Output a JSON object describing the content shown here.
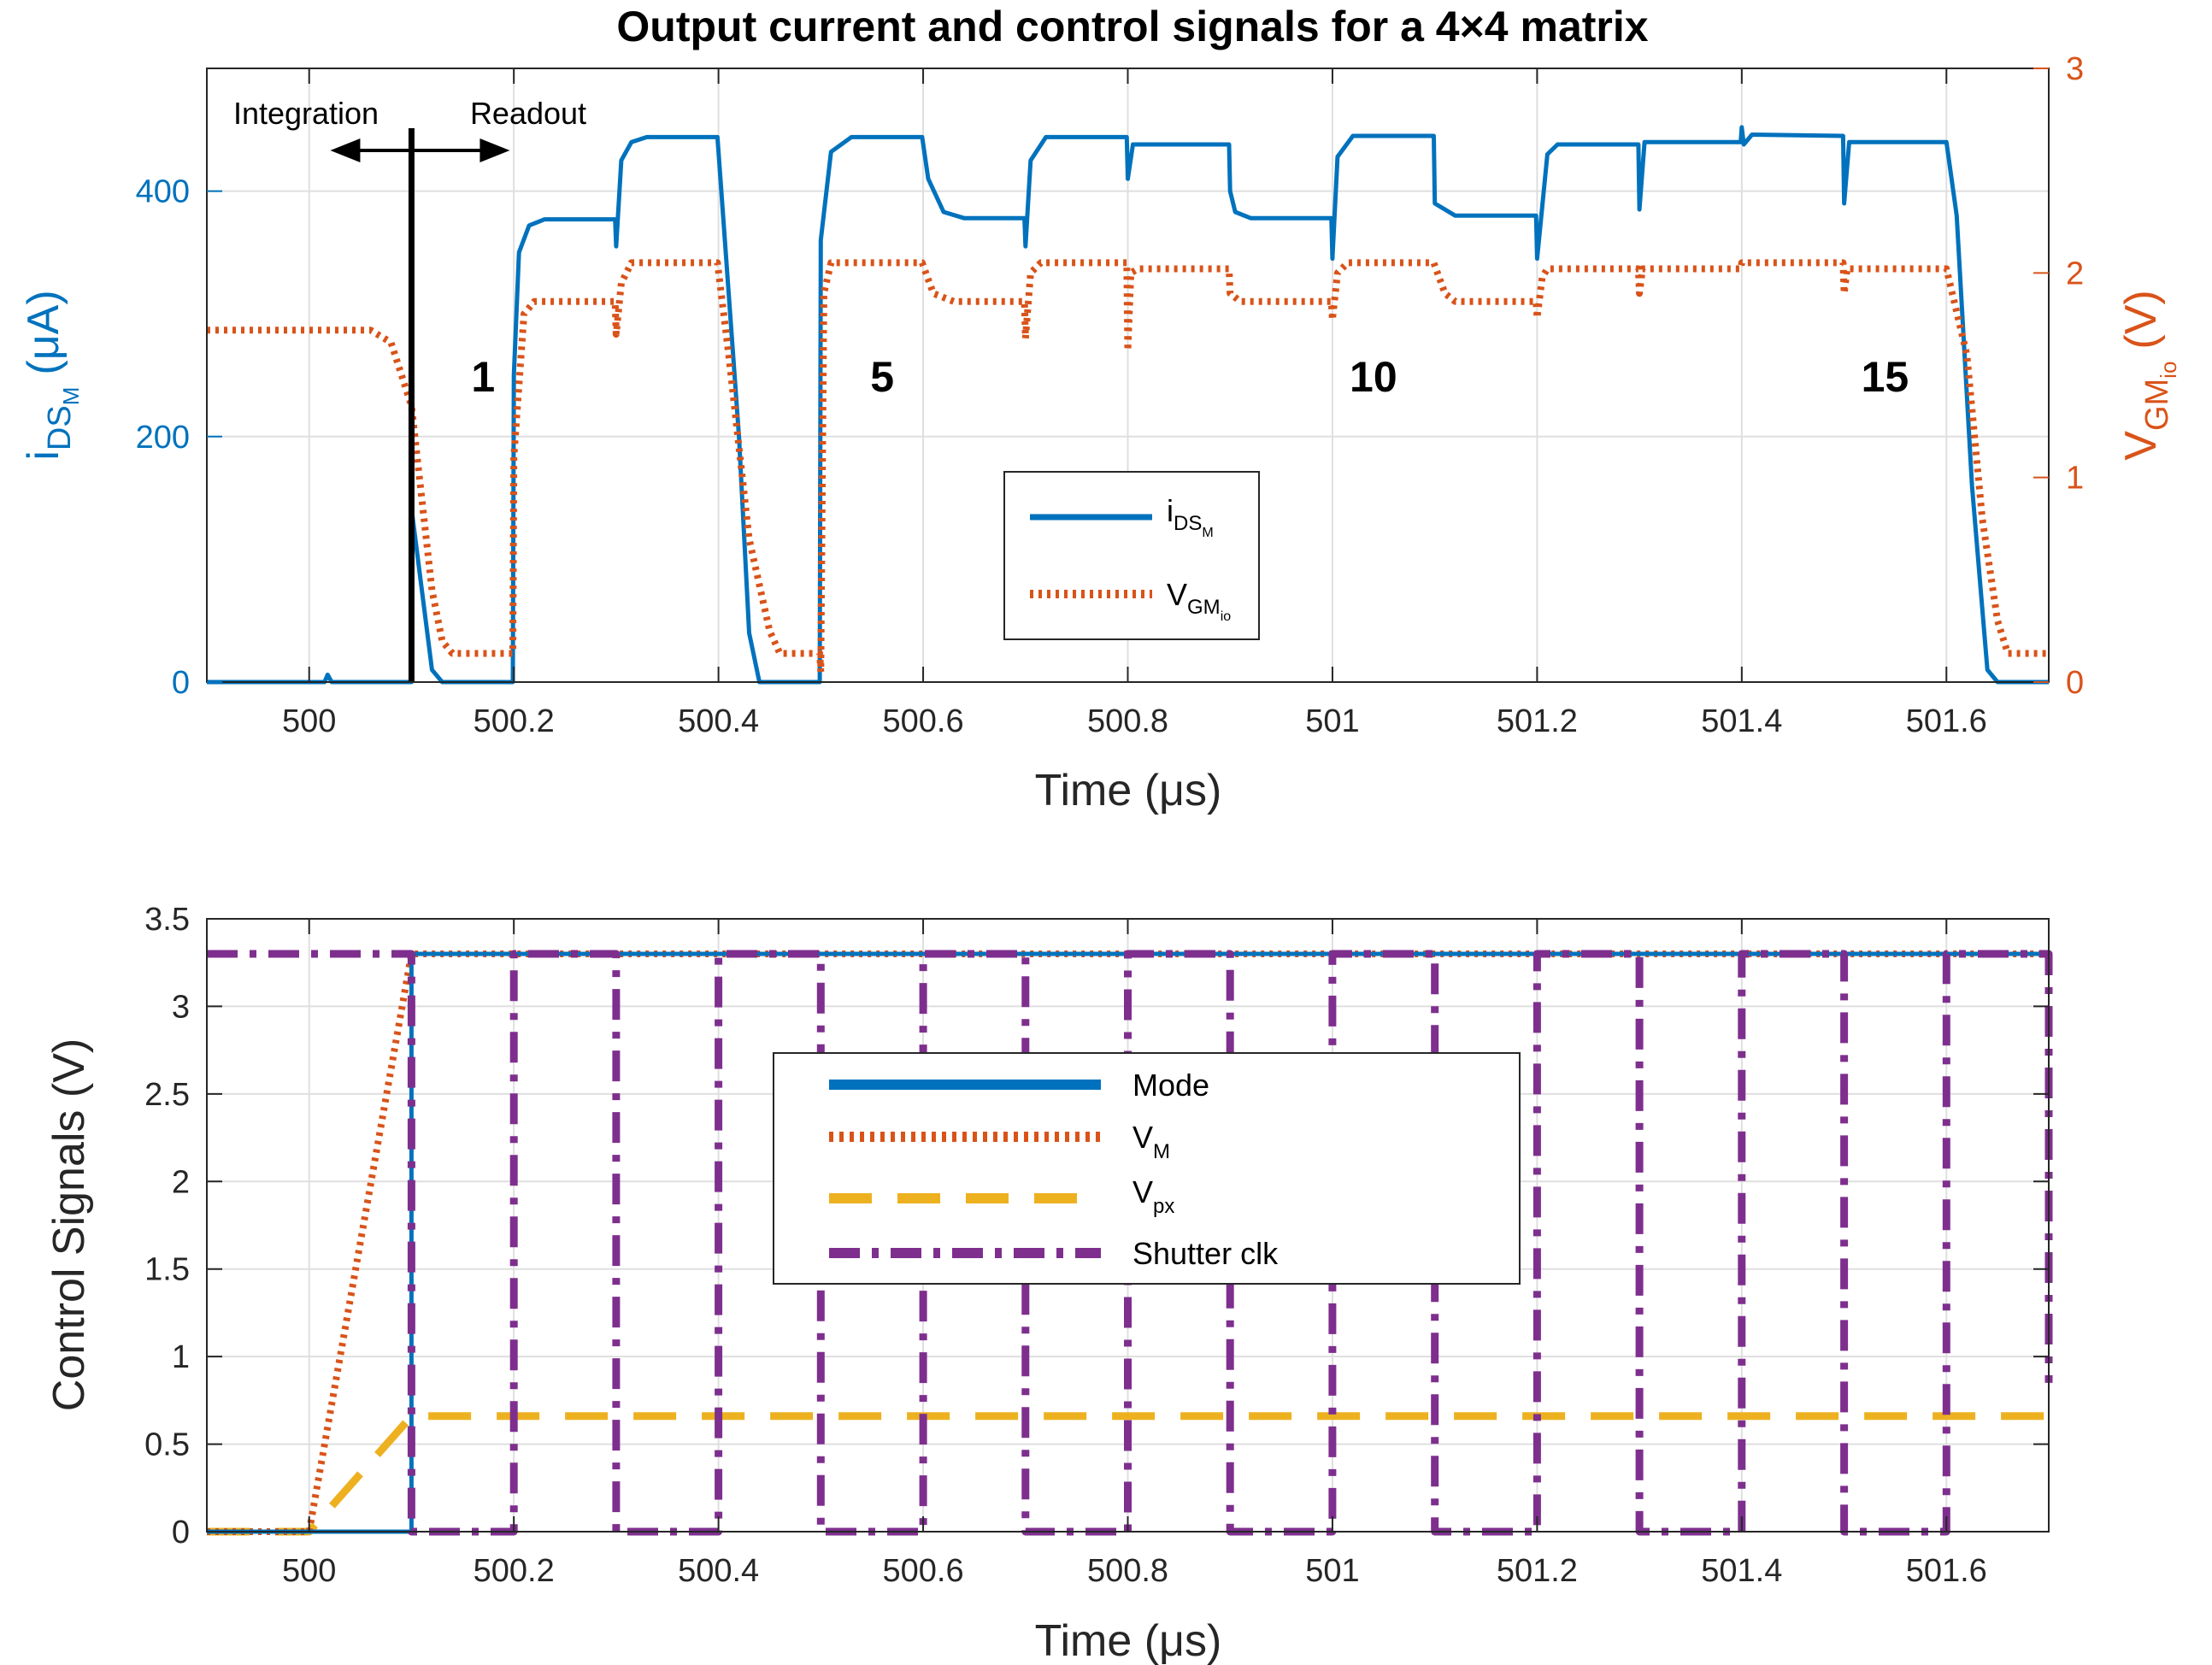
{
  "chart_data": [
    {
      "type": "line",
      "title": "Output current and control signals for a 4×4 matrix",
      "xlabel": "Time (μs)",
      "ylabel_left": "i_DS_M (μA)",
      "ylabel_right": "V_GM_io (V)",
      "xlim": [
        499.9,
        501.7
      ],
      "ylim_left": [
        0,
        500
      ],
      "ylim_right": [
        0,
        3
      ],
      "xticks": [
        "500",
        "500.2",
        "500.4",
        "500.6",
        "500.8",
        "501",
        "501.2",
        "501.4",
        "501.6"
      ],
      "yticks_left": [
        "0",
        "200",
        "400"
      ],
      "yticks_right": [
        "0",
        "1",
        "2",
        "3"
      ],
      "grid": true,
      "legend_position": "center",
      "annotations": {
        "integration": "Integration",
        "readout": "Readout",
        "divider_x": 500.1,
        "numbers": [
          {
            "label": "1",
            "x": 500.17
          },
          {
            "label": "5",
            "x": 500.56
          },
          {
            "label": "10",
            "x": 501.04
          },
          {
            "label": "15",
            "x": 501.54
          }
        ]
      },
      "series": [
        {
          "name": "iDS_M",
          "legend_main": "i",
          "legend_sub": "DS",
          "legend_subsub": "M",
          "color": "#0072BD",
          "style": "solid",
          "axis": "left",
          "points": [
            [
              499.9,
              0
            ],
            [
              500.0,
              0
            ],
            [
              500.015,
              0
            ],
            [
              500.018,
              6
            ],
            [
              500.022,
              0
            ],
            [
              500.1,
              0
            ],
            [
              500.101,
              135
            ],
            [
              500.12,
              10
            ],
            [
              500.13,
              0
            ],
            [
              500.199,
              0
            ],
            [
              500.2,
              250
            ],
            [
              500.205,
              350
            ],
            [
              500.215,
              372
            ],
            [
              500.23,
              377
            ],
            [
              500.299,
              377
            ],
            [
              500.3,
              355
            ],
            [
              500.305,
              425
            ],
            [
              500.315,
              440
            ],
            [
              500.33,
              444
            ],
            [
              500.399,
              444
            ],
            [
              500.42,
              200
            ],
            [
              500.43,
              40
            ],
            [
              500.44,
              0
            ],
            [
              500.499,
              0
            ],
            [
              500.5,
              360
            ],
            [
              500.51,
              432
            ],
            [
              500.53,
              444
            ],
            [
              500.599,
              444
            ],
            [
              500.605,
              410
            ],
            [
              500.62,
              383
            ],
            [
              500.64,
              378
            ],
            [
              500.699,
              378
            ],
            [
              500.7,
              355
            ],
            [
              500.705,
              425
            ],
            [
              500.72,
              444
            ],
            [
              500.799,
              444
            ],
            [
              500.8,
              410
            ],
            [
              500.805,
              438
            ],
            [
              500.899,
              438
            ],
            [
              500.9,
              400
            ],
            [
              500.905,
              383
            ],
            [
              500.92,
              378
            ],
            [
              500.999,
              378
            ],
            [
              501.0,
              345
            ],
            [
              501.005,
              428
            ],
            [
              501.02,
              445
            ],
            [
              501.099,
              445
            ],
            [
              501.1,
              390
            ],
            [
              501.12,
              380
            ],
            [
              501.199,
              380
            ],
            [
              501.2,
              345
            ],
            [
              501.21,
              430
            ],
            [
              501.22,
              438
            ],
            [
              501.299,
              438
            ],
            [
              501.3,
              385
            ],
            [
              501.305,
              440
            ],
            [
              501.399,
              440
            ],
            [
              501.4,
              452
            ],
            [
              501.402,
              438
            ],
            [
              501.41,
              446
            ],
            [
              501.499,
              445
            ],
            [
              501.5,
              390
            ],
            [
              501.505,
              440
            ],
            [
              501.6,
              440
            ],
            [
              501.61,
              380
            ],
            [
              501.625,
              160
            ],
            [
              501.64,
              10
            ],
            [
              501.65,
              0
            ],
            [
              501.7,
              0
            ]
          ]
        },
        {
          "name": "VGM_io",
          "legend_main": "V",
          "legend_sub": "GM",
          "legend_subsub": "io",
          "color": "#D95319",
          "style": "dotted",
          "axis": "right",
          "points": [
            [
              499.9,
              1.72
            ],
            [
              500.06,
              1.72
            ],
            [
              500.08,
              1.66
            ],
            [
              500.1,
              1.35
            ],
            [
              500.11,
              0.9
            ],
            [
              500.12,
              0.45
            ],
            [
              500.13,
              0.2
            ],
            [
              500.14,
              0.14
            ],
            [
              500.199,
              0.14
            ],
            [
              500.2,
              1.1
            ],
            [
              500.21,
              1.8
            ],
            [
              500.22,
              1.86
            ],
            [
              500.299,
              1.86
            ],
            [
              500.3,
              1.7
            ],
            [
              500.305,
              1.95
            ],
            [
              500.315,
              2.05
            ],
            [
              500.399,
              2.05
            ],
            [
              500.41,
              1.6
            ],
            [
              500.43,
              0.7
            ],
            [
              500.45,
              0.25
            ],
            [
              500.46,
              0.14
            ],
            [
              500.499,
              0.14
            ],
            [
              500.5,
              0.05
            ],
            [
              500.503,
              1.9
            ],
            [
              500.51,
              2.05
            ],
            [
              500.599,
              2.05
            ],
            [
              500.61,
              1.9
            ],
            [
              500.63,
              1.86
            ],
            [
              500.699,
              1.86
            ],
            [
              500.7,
              1.68
            ],
            [
              500.705,
              2.0
            ],
            [
              500.715,
              2.05
            ],
            [
              500.799,
              2.05
            ],
            [
              500.8,
              1.62
            ],
            [
              500.803,
              2.0
            ],
            [
              500.81,
              2.02
            ],
            [
              500.899,
              2.02
            ],
            [
              500.9,
              1.9
            ],
            [
              500.91,
              1.86
            ],
            [
              500.999,
              1.86
            ],
            [
              501.0,
              1.77
            ],
            [
              501.005,
              2.0
            ],
            [
              501.015,
              2.05
            ],
            [
              501.099,
              2.05
            ],
            [
              501.11,
              1.9
            ],
            [
              501.12,
              1.86
            ],
            [
              501.199,
              1.86
            ],
            [
              501.2,
              1.78
            ],
            [
              501.205,
              1.98
            ],
            [
              501.21,
              2.02
            ],
            [
              501.299,
              2.02
            ],
            [
              501.3,
              1.9
            ],
            [
              501.303,
              2.02
            ],
            [
              501.399,
              2.02
            ],
            [
              501.4,
              2.05
            ],
            [
              501.499,
              2.05
            ],
            [
              501.5,
              1.9
            ],
            [
              501.503,
              2.02
            ],
            [
              501.6,
              2.02
            ],
            [
              501.62,
              1.6
            ],
            [
              501.635,
              0.8
            ],
            [
              501.65,
              0.3
            ],
            [
              501.66,
              0.14
            ],
            [
              501.7,
              0.14
            ]
          ]
        }
      ]
    },
    {
      "type": "line",
      "title": "",
      "xlabel": "Time (μs)",
      "ylabel": "Control Signals (V)",
      "xlim": [
        499.9,
        501.7
      ],
      "ylim": [
        0,
        3.5
      ],
      "xticks": [
        "500",
        "500.2",
        "500.4",
        "500.6",
        "500.8",
        "501",
        "501.2",
        "501.4",
        "501.6"
      ],
      "yticks": [
        "0",
        "0.5",
        "1",
        "1.5",
        "2",
        "2.5",
        "3",
        "3.5"
      ],
      "grid": true,
      "legend_position": "center",
      "series": [
        {
          "name": "Mode",
          "legend_main": "Mode",
          "legend_sub": "",
          "color": "#0072BD",
          "style": "solid",
          "points": [
            [
              499.9,
              0
            ],
            [
              500.1,
              0
            ],
            [
              500.1,
              3.3
            ],
            [
              501.7,
              3.3
            ]
          ]
        },
        {
          "name": "VM",
          "legend_main": "V",
          "legend_sub": "M",
          "color": "#D95319",
          "style": "dotted",
          "points": [
            [
              499.9,
              0
            ],
            [
              500.0,
              0
            ],
            [
              500.1,
              3.3
            ],
            [
              501.7,
              3.3
            ]
          ]
        },
        {
          "name": "Vpx",
          "legend_main": "V",
          "legend_sub": "px",
          "color": "#EDB120",
          "style": "dashed",
          "points": [
            [
              499.9,
              0
            ],
            [
              500.0,
              0
            ],
            [
              500.1,
              0.66
            ],
            [
              501.7,
              0.66
            ]
          ]
        },
        {
          "name": "Shutter clk",
          "legend_main": "Shutter clk",
          "legend_sub": "",
          "color": "#7E2F8E",
          "style": "dashdot",
          "points": [
            [
              499.9,
              3.3
            ],
            [
              500.1,
              3.3
            ],
            [
              500.1,
              0
            ],
            [
              500.2,
              0
            ],
            [
              500.2,
              3.3
            ],
            [
              500.3,
              3.3
            ],
            [
              500.3,
              0
            ],
            [
              500.4,
              0
            ],
            [
              500.4,
              3.3
            ],
            [
              500.5,
              3.3
            ],
            [
              500.5,
              0
            ],
            [
              500.6,
              0
            ],
            [
              500.6,
              3.3
            ],
            [
              500.7,
              3.3
            ],
            [
              500.7,
              0
            ],
            [
              500.8,
              0
            ],
            [
              500.8,
              3.3
            ],
            [
              500.9,
              3.3
            ],
            [
              500.9,
              0
            ],
            [
              501.0,
              0
            ],
            [
              501.0,
              3.3
            ],
            [
              501.1,
              3.3
            ],
            [
              501.1,
              0
            ],
            [
              501.2,
              0
            ],
            [
              501.2,
              3.3
            ],
            [
              501.3,
              3.3
            ],
            [
              501.3,
              0
            ],
            [
              501.4,
              0
            ],
            [
              501.4,
              3.3
            ],
            [
              501.5,
              3.3
            ],
            [
              501.5,
              0
            ],
            [
              501.6,
              0
            ],
            [
              501.6,
              3.3
            ],
            [
              501.7,
              3.3
            ],
            [
              501.7,
              0.85
            ]
          ]
        }
      ]
    }
  ]
}
